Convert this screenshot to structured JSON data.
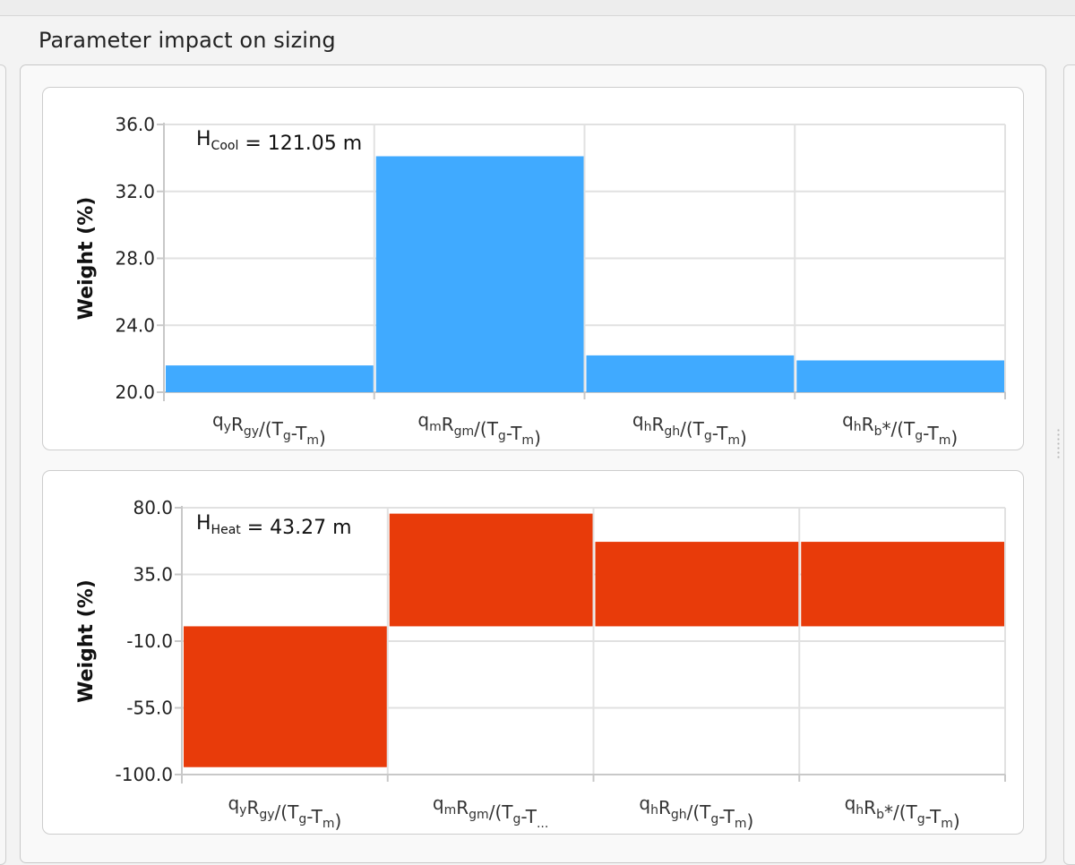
{
  "section": {
    "title": "Parameter impact on sizing"
  },
  "colors": {
    "cool_bar": "#40aaff",
    "heat_bar": "#e83b0a",
    "grid": "#e1e1e1",
    "axis": "#c8c8c8"
  },
  "chart_data": [
    {
      "type": "bar",
      "categories": [
        {
          "main": "q",
          "sub": "y",
          "mid": "R",
          "sub2": "gy",
          "tail": "/(T",
          "sub3": "g",
          "tail2": "-T",
          "sub4": "m",
          "end": ")"
        },
        {
          "main": "q",
          "sub": "m",
          "mid": "R",
          "sub2": "gm",
          "tail": "/(T",
          "sub3": "g",
          "tail2": "-T",
          "sub4": "m",
          "end": ")"
        },
        {
          "main": "q",
          "sub": "h",
          "mid": "R",
          "sub2": "gh",
          "tail": "/(T",
          "sub3": "g",
          "tail2": "-T",
          "sub4": "m",
          "end": ")"
        },
        {
          "main": "q",
          "sub": "h",
          "mid": "R",
          "sub2": "b",
          "tail": "*/(T",
          "sub3": "g",
          "tail2": "-T",
          "sub4": "m",
          "end": ")"
        }
      ],
      "values": [
        21.6,
        34.1,
        22.2,
        21.9
      ],
      "ylabel": "Weight (%)",
      "ylim": [
        20.0,
        36.0
      ],
      "yticks": [
        "20.0",
        "24.0",
        "28.0",
        "32.0",
        "36.0"
      ],
      "ytick_values": [
        20,
        24,
        28,
        32,
        36
      ],
      "annotation": {
        "prefix": "H",
        "sub": "Cool",
        "rest": " = 121.05 m"
      },
      "grid": true
    },
    {
      "type": "bar",
      "categories": [
        {
          "main": "q",
          "sub": "y",
          "mid": "R",
          "sub2": "gy",
          "tail": "/(T",
          "sub3": "g",
          "tail2": "-T",
          "sub4": "m",
          "end": ")"
        },
        {
          "main": "q",
          "sub": "m",
          "mid": "R",
          "sub2": "gm",
          "tail": "/(T",
          "sub3": "g",
          "tail2": "-T",
          "sub4": "...",
          "end": ""
        },
        {
          "main": "q",
          "sub": "h",
          "mid": "R",
          "sub2": "gh",
          "tail": "/(T",
          "sub3": "g",
          "tail2": "-T",
          "sub4": "m",
          "end": ")"
        },
        {
          "main": "q",
          "sub": "h",
          "mid": "R",
          "sub2": "b",
          "tail": "*/(T",
          "sub3": "g",
          "tail2": "-T",
          "sub4": "m",
          "end": ")"
        }
      ],
      "values": [
        -95.0,
        76.0,
        57.0,
        57.0
      ],
      "ylabel": "Weight (%)",
      "ylim": [
        -100.0,
        80.0
      ],
      "yticks": [
        "-100.0",
        "-55.0",
        "-10.0",
        "35.0",
        "80.0"
      ],
      "ytick_values": [
        -100,
        -55,
        -10,
        35,
        80
      ],
      "annotation": {
        "prefix": "H",
        "sub": "Heat",
        "rest": " = 43.27 m"
      },
      "grid": true
    }
  ]
}
